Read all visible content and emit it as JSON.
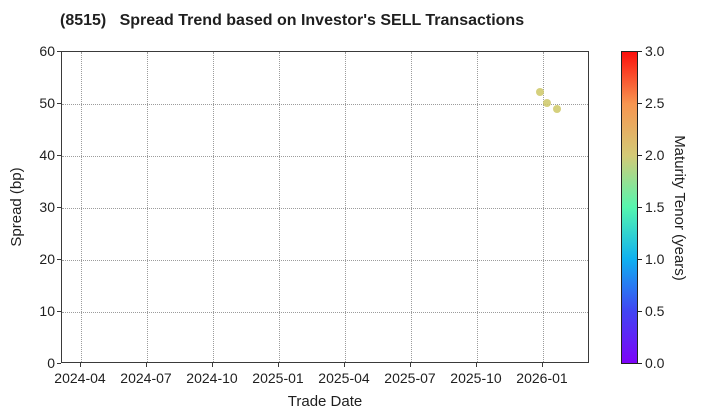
{
  "title": "(8515)   Spread Trend based on Investor's SELL Transactions",
  "chart_data": {
    "type": "scatter",
    "title": "(8515)   Spread Trend based on Investor's SELL Transactions",
    "xlabel": "Trade Date",
    "ylabel": "Spread (bp)",
    "x_tick_labels": [
      "2024-04",
      "2024-07",
      "2024-10",
      "2025-01",
      "2025-04",
      "2025-07",
      "2025-10",
      "2026-01"
    ],
    "x_tick_interval_months": 3,
    "x_axis_start": "2024-04",
    "ylim": [
      0,
      60
    ],
    "y_ticks": [
      0,
      10,
      20,
      30,
      40,
      50,
      60
    ],
    "grid": "dotted",
    "points": [
      {
        "date": "2025-12-27",
        "spread": 52.3,
        "maturity_tenor_years": 2.0
      },
      {
        "date": "2026-01-06",
        "spread": 50.1,
        "maturity_tenor_years": 2.0
      },
      {
        "date": "2026-01-21",
        "spread": 49.0,
        "maturity_tenor_years": 2.0
      }
    ],
    "point_color": "#cfc96b",
    "colorbar": {
      "label": "Maturity Tenor (years)",
      "min": 0.0,
      "max": 3.0,
      "ticks": [
        "0.0",
        "0.5",
        "1.0",
        "1.5",
        "2.0",
        "2.5",
        "3.0"
      ],
      "colormap": "rainbow",
      "gradient_stops_bottom_to_top": [
        "#7d03f8",
        "#4145f3",
        "#0fb0f0",
        "#55f6af",
        "#d3ca77",
        "#f79550",
        "#fb100c"
      ]
    }
  }
}
